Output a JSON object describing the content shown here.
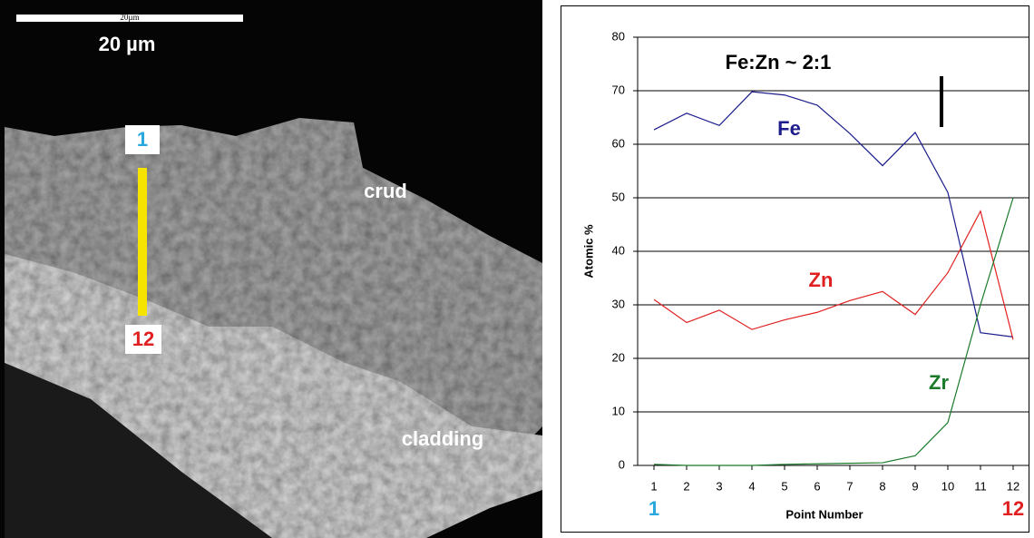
{
  "image": {
    "scale_small": "20µm",
    "scale_label": "20 µm",
    "start_marker": "1",
    "end_marker": "12",
    "crud_label": "crud",
    "cladding_label": "cladding"
  },
  "chart_data": {
    "type": "line",
    "annotation": "Fe:Zn ~ 2:1",
    "y_label": "Atomic %",
    "x_label": "Point Number",
    "start_label": "1",
    "end_label": "12",
    "x": [
      1,
      2,
      3,
      4,
      5,
      6,
      7,
      8,
      9,
      10,
      11,
      12
    ],
    "xlim": [
      0.5,
      12.5
    ],
    "xticks": [
      1,
      2,
      3,
      4,
      5,
      6,
      7,
      8,
      9,
      10,
      11,
      12
    ],
    "ylim": [
      0,
      80
    ],
    "yticks": [
      0,
      10,
      20,
      30,
      40,
      50,
      60,
      70,
      80
    ],
    "grid": true,
    "series": [
      {
        "name": "Fe",
        "color": "#1c1c8c",
        "values": [
          62.7,
          65.8,
          63.5,
          69.8,
          69.2,
          67.3,
          62,
          56,
          62.2,
          51,
          24.8,
          24
        ]
      },
      {
        "name": "Zn",
        "color": "#e02020",
        "values": [
          31,
          26.7,
          29,
          25.4,
          27.2,
          28.6,
          30.8,
          32.5,
          28.2,
          36,
          47.5,
          23.5
        ]
      },
      {
        "name": "Zr",
        "color": "#1a7a2a",
        "values": [
          0.2,
          0,
          0,
          0,
          0.2,
          0.3,
          0.4,
          0.5,
          1.8,
          8,
          30,
          50
        ]
      }
    ]
  }
}
